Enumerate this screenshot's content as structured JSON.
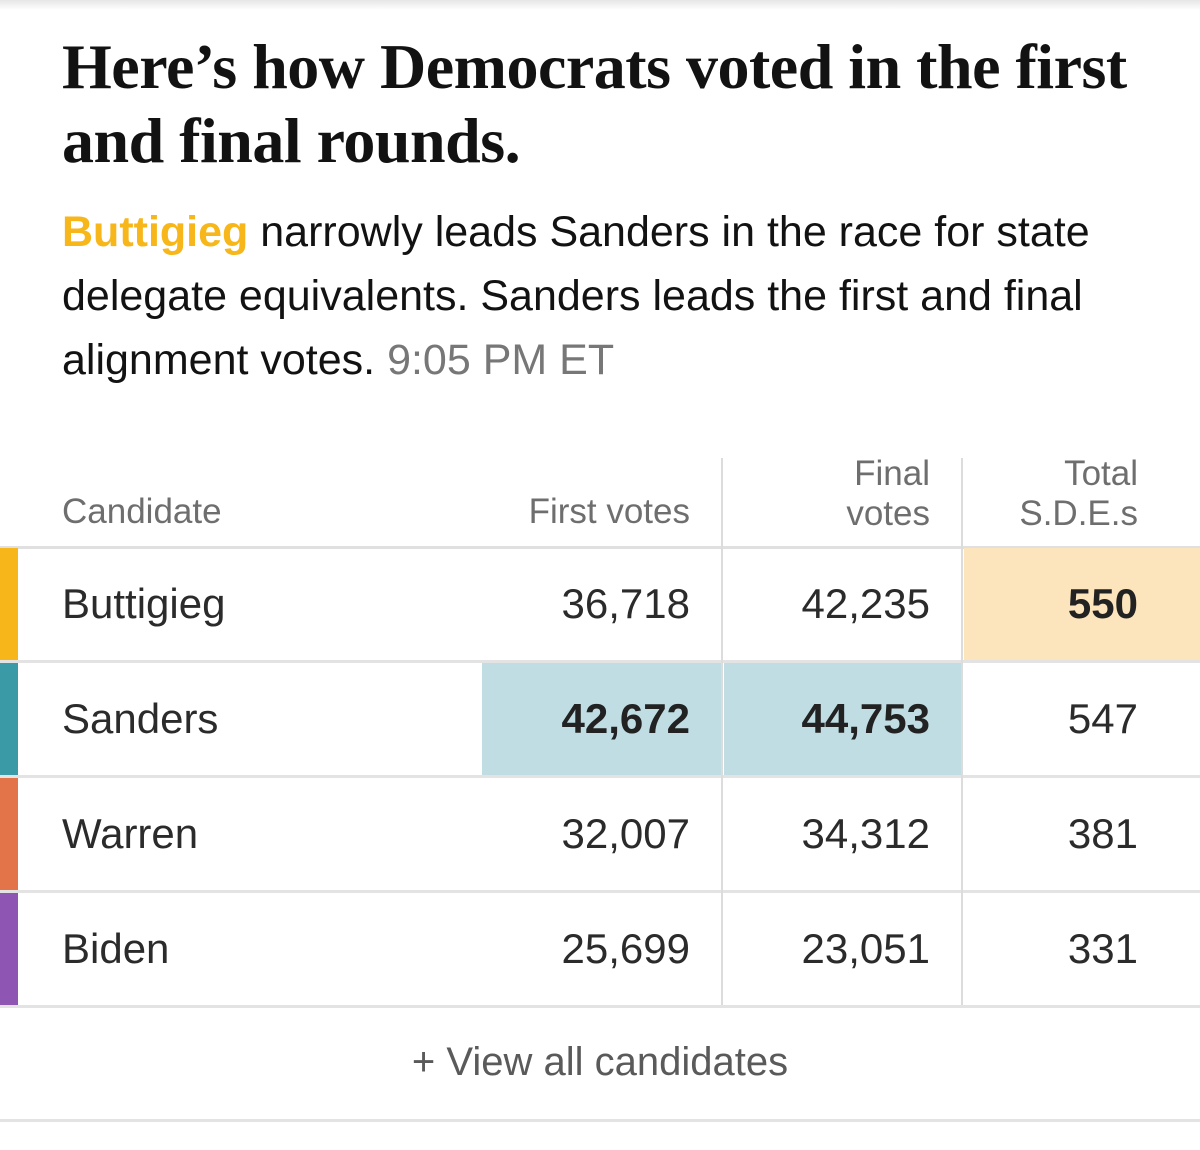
{
  "headline": "Here’s how Democrats voted in the first and final rounds.",
  "summary": {
    "leader": "Buttigieg",
    "text": " narrowly leads Sanders in the race for state delegate equivalents. Sanders leads the first and final alignment votes. ",
    "timestamp": "9:05 PM ET"
  },
  "table": {
    "headers": {
      "candidate": "Candidate",
      "first_votes": "First votes",
      "final_votes_line1": "Final",
      "final_votes_line2": "votes",
      "total_sdes_line1": "Total",
      "total_sdes_line2": "S.D.E.s"
    },
    "rows": [
      {
        "candidate": "Buttigieg",
        "first": "36,718",
        "final": "42,235",
        "sdes": "550",
        "color": "#F7B61A"
      },
      {
        "candidate": "Sanders",
        "first": "42,672",
        "final": "44,753",
        "sdes": "547",
        "color": "#3A9AA6"
      },
      {
        "candidate": "Warren",
        "first": "32,007",
        "final": "34,312",
        "sdes": "381",
        "color": "#E3744A"
      },
      {
        "candidate": "Biden",
        "first": "25,699",
        "final": "23,051",
        "sdes": "331",
        "color": "#8E55B2"
      }
    ],
    "highlight_colors": {
      "sanders": "#BFDDE3",
      "buttigieg": "#FCE5BC"
    }
  },
  "footer": {
    "view_all": "+ View all candidates"
  }
}
